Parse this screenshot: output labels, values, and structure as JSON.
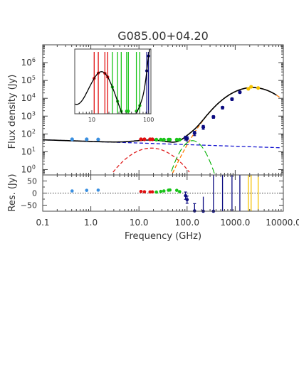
{
  "chart_data": {
    "type": "scatter",
    "title": "G085.00+04.20",
    "xlabel": "Frequency (GHz)",
    "xscale": "log",
    "xlim": [
      0.1,
      10000
    ],
    "x_ticks": [
      {
        "v": 0.1,
        "label": "0.1"
      },
      {
        "v": 1,
        "label": "1.0"
      },
      {
        "v": 10,
        "label": "10.0"
      },
      {
        "v": 100,
        "label": "100.0"
      },
      {
        "v": 1000,
        "label": "1000.0"
      },
      {
        "v": 10000,
        "label": "10000.0"
      }
    ],
    "main": {
      "ylabel": "Flux density (Jy)",
      "yscale": "log",
      "ylim": [
        0.5,
        10000000
      ],
      "y_ticks": [
        {
          "v": 1,
          "base": "10",
          "exp": "0"
        },
        {
          "v": 10,
          "base": "10",
          "exp": "1"
        },
        {
          "v": 100,
          "base": "10",
          "exp": "2"
        },
        {
          "v": 1000,
          "base": "10",
          "exp": "3"
        },
        {
          "v": 10000,
          "base": "10",
          "exp": "4"
        },
        {
          "v": 100000,
          "base": "10",
          "exp": "5"
        },
        {
          "v": 1000000,
          "base": "10",
          "exp": "6"
        }
      ],
      "series": [
        {
          "color": "#3a8fe0",
          "points": [
            [
              0.408,
              50,
              0
            ],
            [
              0.82,
              50,
              0
            ],
            [
              1.42,
              49,
              0
            ]
          ]
        },
        {
          "color": "#e01010",
          "points": [
            [
              11,
              50,
              0
            ],
            [
              13,
              50,
              0
            ],
            [
              17,
              50,
              0
            ],
            [
              19,
              50,
              0
            ]
          ]
        },
        {
          "color": "#19c419",
          "points": [
            [
              23,
              48,
              0
            ],
            [
              28.4,
              48,
              0
            ],
            [
              33,
              48,
              0
            ],
            [
              41,
              48,
              0
            ],
            [
              44,
              48,
              0
            ],
            [
              61,
              48,
              0
            ],
            [
              70,
              48,
              0
            ]
          ]
        },
        {
          "color": "#0a0a80",
          "points": [
            [
              93,
              60,
              15
            ],
            [
              100,
              55,
              15
            ],
            [
              143,
              110,
              30
            ],
            [
              217,
              240,
              60
            ],
            [
              353,
              900,
              150
            ],
            [
              545,
              3000,
              500
            ],
            [
              857,
              9000,
              1500
            ],
            [
              1249,
              22000,
              3000
            ]
          ]
        },
        {
          "color": "#f5c200",
          "points": [
            [
              1874,
              34000,
              4000
            ],
            [
              2141,
              44000,
              5000
            ],
            [
              2998,
              38000,
              4000
            ]
          ]
        }
      ],
      "curves": {
        "total_color": "#000000",
        "synchrotron_color": "#1515d0",
        "free_free_color": "#e02020",
        "ame_color": "#00b000",
        "dust_color": "#ff7a00"
      }
    },
    "inset": {
      "xlim": [
        5,
        110
      ],
      "ylim": [
        25,
        75
      ],
      "x_ticks": [
        {
          "v": 10,
          "label": "10"
        },
        {
          "v": 100,
          "label": "100"
        }
      ]
    },
    "residuals": {
      "ylabel": "Res. (Jy)",
      "ylim": [
        -75,
        75
      ],
      "y_ticks": [
        {
          "v": -50,
          "label": "−50"
        },
        {
          "v": -25,
          "label": "−25"
        },
        {
          "v": 0,
          "label": "0"
        },
        {
          "v": 25,
          "label": "25"
        },
        {
          "v": 50,
          "label": "50"
        }
      ]
    }
  }
}
